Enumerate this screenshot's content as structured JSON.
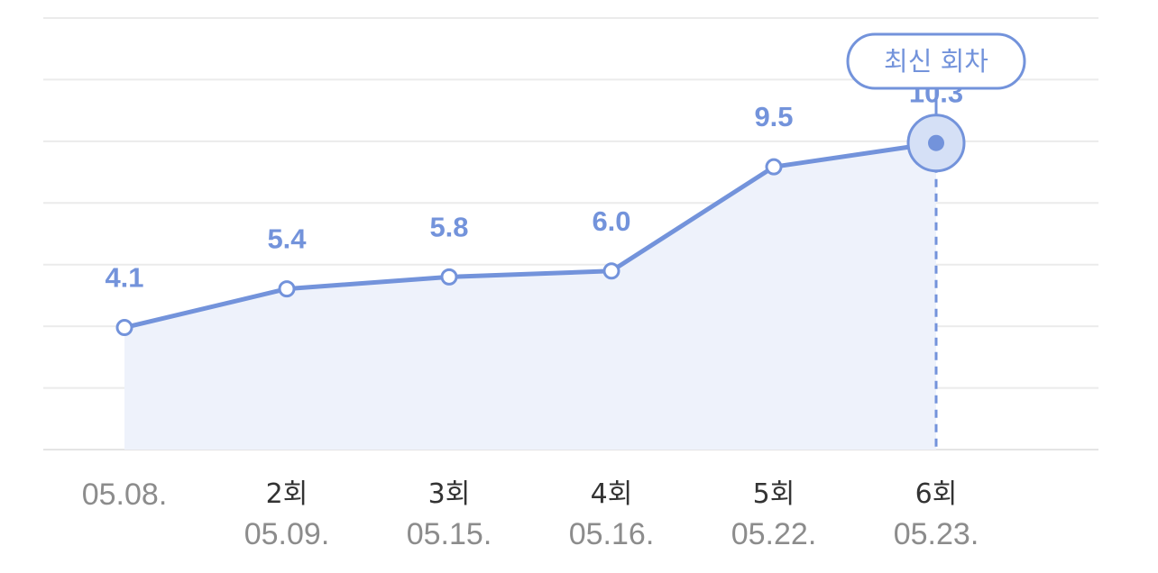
{
  "chart_data": {
    "type": "line",
    "title": "",
    "xlabel": "",
    "ylabel": "",
    "ylim": [
      0,
      14.5
    ],
    "grid": true,
    "fill_area": true,
    "categories": [
      {
        "round": "",
        "date": "05.08."
      },
      {
        "round": "2회",
        "date": "05.09."
      },
      {
        "round": "3회",
        "date": "05.15."
      },
      {
        "round": "4회",
        "date": "05.16."
      },
      {
        "round": "5회",
        "date": "05.22."
      },
      {
        "round": "6회",
        "date": "05.23."
      }
    ],
    "series": [
      {
        "values": [
          4.1,
          5.4,
          5.8,
          6.0,
          9.5,
          10.3
        ]
      }
    ],
    "value_labels": [
      "4.1",
      "5.4",
      "5.8",
      "6.0",
      "9.5",
      "10.3"
    ],
    "highlight": {
      "index": 5,
      "label": "최신 회차"
    },
    "colors": {
      "line": "#7393db",
      "fill": "#eef2fb",
      "grid": "#ebebeb",
      "highlight_halo": "#d5e0f6"
    }
  }
}
